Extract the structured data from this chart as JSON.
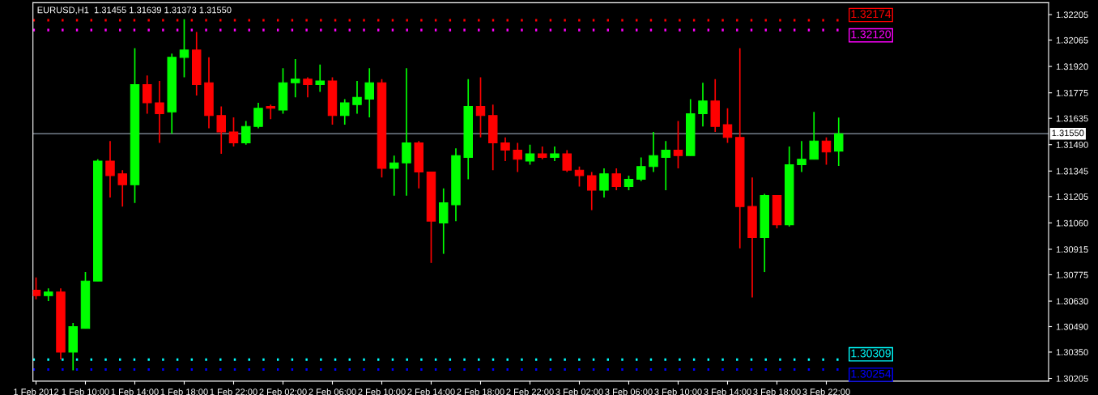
{
  "chart_data": {
    "type": "candlestick",
    "title": "EURUSD,H1  1.31455 1.31639 1.31373 1.31550",
    "x": [
      "2012-02-01T06:00",
      "2012-02-01T07:00",
      "2012-02-01T08:00",
      "2012-02-01T09:00",
      "2012-02-01T10:00",
      "2012-02-01T11:00",
      "2012-02-01T12:00",
      "2012-02-01T13:00",
      "2012-02-01T14:00",
      "2012-02-01T15:00",
      "2012-02-01T16:00",
      "2012-02-01T17:00",
      "2012-02-01T18:00",
      "2012-02-01T19:00",
      "2012-02-01T20:00",
      "2012-02-01T21:00",
      "2012-02-01T22:00",
      "2012-02-01T23:00",
      "2012-02-02T00:00",
      "2012-02-02T01:00",
      "2012-02-02T02:00",
      "2012-02-02T03:00",
      "2012-02-02T04:00",
      "2012-02-02T05:00",
      "2012-02-02T06:00",
      "2012-02-02T07:00",
      "2012-02-02T08:00",
      "2012-02-02T09:00",
      "2012-02-02T10:00",
      "2012-02-02T11:00",
      "2012-02-02T12:00",
      "2012-02-02T13:00",
      "2012-02-02T14:00",
      "2012-02-02T15:00",
      "2012-02-02T16:00",
      "2012-02-02T17:00",
      "2012-02-02T18:00",
      "2012-02-02T19:00",
      "2012-02-02T20:00",
      "2012-02-02T21:00",
      "2012-02-02T22:00",
      "2012-02-02T23:00",
      "2012-02-03T00:00",
      "2012-02-03T01:00",
      "2012-02-03T02:00",
      "2012-02-03T03:00",
      "2012-02-03T04:00",
      "2012-02-03T05:00",
      "2012-02-03T06:00",
      "2012-02-03T07:00",
      "2012-02-03T08:00",
      "2012-02-03T09:00",
      "2012-02-03T10:00",
      "2012-02-03T11:00",
      "2012-02-03T12:00",
      "2012-02-03T13:00",
      "2012-02-03T14:00",
      "2012-02-03T15:00",
      "2012-02-03T16:00",
      "2012-02-03T17:00",
      "2012-02-03T18:00",
      "2012-02-03T19:00",
      "2012-02-03T20:00",
      "2012-02-03T21:00",
      "2012-02-03T22:00",
      "2012-02-03T23:00"
    ],
    "ohlc": [
      [
        1.3069,
        1.3076,
        1.3064,
        1.3066
      ],
      [
        1.3066,
        1.307,
        1.3063,
        1.3068
      ],
      [
        1.3068,
        1.307,
        1.3031,
        1.3035
      ],
      [
        1.3035,
        1.3051,
        1.3025,
        1.3049
      ],
      [
        1.3048,
        1.3079,
        1.3048,
        1.3074
      ],
      [
        1.3074,
        1.3141,
        1.3074,
        1.314
      ],
      [
        1.314,
        1.3151,
        1.312,
        1.3132
      ],
      [
        1.3133,
        1.3135,
        1.3115,
        1.3127
      ],
      [
        1.3127,
        1.3202,
        1.3117,
        1.3182
      ],
      [
        1.3182,
        1.3187,
        1.3166,
        1.3172
      ],
      [
        1.3172,
        1.3184,
        1.315,
        1.3166
      ],
      [
        1.3167,
        1.3199,
        1.3155,
        1.3197
      ],
      [
        1.3197,
        1.3218,
        1.3186,
        1.3201
      ],
      [
        1.3201,
        1.3211,
        1.3176,
        1.3182
      ],
      [
        1.3183,
        1.3197,
        1.3158,
        1.3165
      ],
      [
        1.3165,
        1.317,
        1.3144,
        1.3156
      ],
      [
        1.3156,
        1.3164,
        1.3148,
        1.315
      ],
      [
        1.315,
        1.3162,
        1.3149,
        1.3159
      ],
      [
        1.3159,
        1.3172,
        1.3158,
        1.3169
      ],
      [
        1.317,
        1.3171,
        1.3163,
        1.3169
      ],
      [
        1.3168,
        1.3191,
        1.3166,
        1.3183
      ],
      [
        1.3183,
        1.3196,
        1.3175,
        1.3185
      ],
      [
        1.3185,
        1.3186,
        1.3175,
        1.3182
      ],
      [
        1.3182,
        1.3193,
        1.3178,
        1.3184
      ],
      [
        1.3184,
        1.3186,
        1.316,
        1.3165
      ],
      [
        1.3165,
        1.3174,
        1.316,
        1.3172
      ],
      [
        1.3171,
        1.3184,
        1.3166,
        1.3175
      ],
      [
        1.3174,
        1.3191,
        1.3164,
        1.3183
      ],
      [
        1.3183,
        1.3185,
        1.3131,
        1.3136
      ],
      [
        1.3136,
        1.3143,
        1.3121,
        1.3139
      ],
      [
        1.3139,
        1.3191,
        1.3121,
        1.315
      ],
      [
        1.315,
        1.3151,
        1.3125,
        1.3134
      ],
      [
        1.3134,
        1.3134,
        1.3084,
        1.3107
      ],
      [
        1.3106,
        1.3125,
        1.3089,
        1.3117
      ],
      [
        1.3116,
        1.3147,
        1.3107,
        1.3143
      ],
      [
        1.3142,
        1.3185,
        1.313,
        1.317
      ],
      [
        1.317,
        1.3186,
        1.3153,
        1.3165
      ],
      [
        1.3165,
        1.3171,
        1.3135,
        1.315
      ],
      [
        1.315,
        1.3153,
        1.314,
        1.3146
      ],
      [
        1.3146,
        1.315,
        1.3134,
        1.3141
      ],
      [
        1.314,
        1.3149,
        1.3138,
        1.3144
      ],
      [
        1.3144,
        1.3148,
        1.3141,
        1.3142
      ],
      [
        1.3142,
        1.3148,
        1.314,
        1.3144
      ],
      [
        1.3144,
        1.3146,
        1.3134,
        1.3135
      ],
      [
        1.3135,
        1.3137,
        1.3126,
        1.3132
      ],
      [
        1.3132,
        1.3134,
        1.3113,
        1.3124
      ],
      [
        1.3124,
        1.3136,
        1.312,
        1.3133
      ],
      [
        1.3133,
        1.3136,
        1.3124,
        1.3126
      ],
      [
        1.3126,
        1.3132,
        1.3124,
        1.313
      ],
      [
        1.313,
        1.3142,
        1.3129,
        1.3137
      ],
      [
        1.3137,
        1.3156,
        1.3134,
        1.3143
      ],
      [
        1.3142,
        1.3151,
        1.3124,
        1.3146
      ],
      [
        1.3146,
        1.3162,
        1.3136,
        1.3143
      ],
      [
        1.3143,
        1.3174,
        1.3143,
        1.3166
      ],
      [
        1.3166,
        1.3183,
        1.3159,
        1.3173
      ],
      [
        1.3173,
        1.3185,
        1.3156,
        1.3159
      ],
      [
        1.316,
        1.3169,
        1.315,
        1.3153
      ],
      [
        1.3153,
        1.3202,
        1.3092,
        1.3115
      ],
      [
        1.3115,
        1.3131,
        1.3065,
        1.3098
      ],
      [
        1.3098,
        1.3122,
        1.3079,
        1.3121
      ],
      [
        1.3121,
        1.3121,
        1.3103,
        1.3105
      ],
      [
        1.3105,
        1.3148,
        1.3104,
        1.3138
      ],
      [
        1.3138,
        1.3151,
        1.3134,
        1.3141
      ],
      [
        1.3141,
        1.3167,
        1.3141,
        1.3151
      ],
      [
        1.3151,
        1.3153,
        1.3138,
        1.3145
      ],
      [
        1.31455,
        1.31639,
        1.31373,
        1.3155
      ]
    ],
    "colors": [
      "#ff0000",
      "#00ff00",
      "#ff0000",
      "#00ff00",
      "#00ff00",
      "#00ff00",
      "#ff0000",
      "#ff0000",
      "#00ff00",
      "#ff0000",
      "#ff0000",
      "#00ff00",
      "#00ff00",
      "#ff0000",
      "#ff0000",
      "#ff0000",
      "#ff0000",
      "#00ff00",
      "#00ff00",
      "#ff0000",
      "#00ff00",
      "#00ff00",
      "#ff0000",
      "#00ff00",
      "#ff0000",
      "#00ff00",
      "#00ff00",
      "#00ff00",
      "#ff0000",
      "#00ff00",
      "#00ff00",
      "#ff0000",
      "#ff0000",
      "#00ff00",
      "#00ff00",
      "#00ff00",
      "#ff0000",
      "#ff0000",
      "#ff0000",
      "#ff0000",
      "#00ff00",
      "#ff0000",
      "#00ff00",
      "#ff0000",
      "#ff0000",
      "#ff0000",
      "#00ff00",
      "#ff0000",
      "#00ff00",
      "#00ff00",
      "#00ff00",
      "#00ff00",
      "#ff0000",
      "#00ff00",
      "#00ff00",
      "#ff0000",
      "#ff0000",
      "#ff0000",
      "#ff0000",
      "#00ff00",
      "#ff0000",
      "#00ff00",
      "#00ff00",
      "#00ff00",
      "#ff0000",
      "#00ff00"
    ],
    "xlim": [
      "2012-02-01T05:45",
      "2012-02-04T16:00"
    ],
    "xticks": [
      {
        "value": "2012-02-01T06:00",
        "label": "1 Feb 2012"
      },
      {
        "value": "2012-02-01T10:00",
        "label": "1 Feb 10:00"
      },
      {
        "value": "2012-02-01T14:00",
        "label": "1 Feb 14:00"
      },
      {
        "value": "2012-02-01T18:00",
        "label": "1 Feb 18:00"
      },
      {
        "value": "2012-02-01T22:00",
        "label": "1 Feb 22:00"
      },
      {
        "value": "2012-02-02T02:00",
        "label": "2 Feb 02:00"
      },
      {
        "value": "2012-02-02T06:00",
        "label": "2 Feb 06:00"
      },
      {
        "value": "2012-02-02T10:00",
        "label": "2 Feb 10:00"
      },
      {
        "value": "2012-02-02T14:00",
        "label": "2 Feb 14:00"
      },
      {
        "value": "2012-02-02T18:00",
        "label": "2 Feb 18:00"
      },
      {
        "value": "2012-02-02T22:00",
        "label": "2 Feb 22:00"
      },
      {
        "value": "2012-02-03T02:00",
        "label": "3 Feb 02:00"
      },
      {
        "value": "2012-02-03T06:00",
        "label": "3 Feb 06:00"
      },
      {
        "value": "2012-02-03T10:00",
        "label": "3 Feb 10:00"
      },
      {
        "value": "2012-02-03T14:00",
        "label": "3 Feb 14:00"
      },
      {
        "value": "2012-02-03T18:00",
        "label": "3 Feb 18:00"
      },
      {
        "value": "2012-02-03T22:00",
        "label": "3 Feb 22:00"
      }
    ],
    "ylim": [
      1.3019,
      1.3227
    ],
    "yticks": [
      {
        "value": 1.32205,
        "label": "1.32205"
      },
      {
        "value": 1.32065,
        "label": "1.32065"
      },
      {
        "value": 1.3192,
        "label": "1.31920"
      },
      {
        "value": 1.31775,
        "label": "1.31775"
      },
      {
        "value": 1.31635,
        "label": "1.31635"
      },
      {
        "value": 1.3149,
        "label": "1.31490"
      },
      {
        "value": 1.31345,
        "label": "1.31345"
      },
      {
        "value": 1.31205,
        "label": "1.31205"
      },
      {
        "value": 1.3106,
        "label": "1.31060"
      },
      {
        "value": 1.30915,
        "label": "1.30915"
      },
      {
        "value": 1.30775,
        "label": "1.30775"
      },
      {
        "value": 1.3063,
        "label": "1.30630"
      },
      {
        "value": 1.3049,
        "label": "1.30490"
      },
      {
        "value": 1.3035,
        "label": "1.30350"
      },
      {
        "value": 1.30205,
        "label": "1.30205"
      }
    ],
    "ref_lines": [
      {
        "axis": "y",
        "value": 1.32174,
        "label": "1.32174",
        "color": "#ff0000",
        "line_style": "dotted"
      },
      {
        "axis": "y",
        "value": 1.3212,
        "label": "1.32120",
        "color": "#ff00ff",
        "line_style": "dotted"
      },
      {
        "axis": "y",
        "value": 1.30309,
        "label": "1.30309",
        "color": "#00ffff",
        "line_style": "dotted"
      },
      {
        "axis": "y",
        "value": 1.30254,
        "label": "1.30254",
        "color": "#0000ff",
        "line_style": "dotted"
      },
      {
        "axis": "y",
        "value": 1.3155,
        "label": "1.31550",
        "color": "#8c9aa8",
        "line_style": "solid"
      }
    ],
    "grid": false
  }
}
